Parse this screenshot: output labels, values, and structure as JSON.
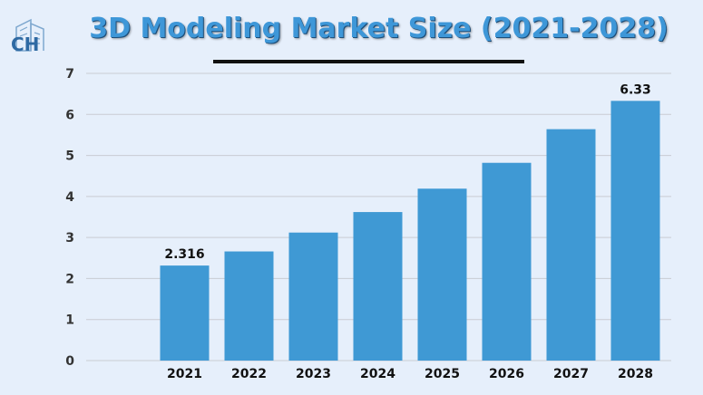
{
  "title": "3D Modeling Market Size (2021-2028)",
  "logo_text": "CH",
  "colors": {
    "bar": "#3f99d4",
    "background": "#e6effb",
    "title": "#3e97d8",
    "grid": "#c9ccd3"
  },
  "chart_data": {
    "type": "bar",
    "title": "3D Modeling Market Size (2021-2028)",
    "categories": [
      "2021",
      "2022",
      "2023",
      "2024",
      "2025",
      "2026",
      "2027",
      "2028"
    ],
    "values": [
      2.316,
      2.66,
      3.12,
      3.62,
      4.19,
      4.82,
      5.64,
      6.33
    ],
    "data_labels": {
      "2021": "2.316",
      "2028": "6.33"
    },
    "ylim": [
      0,
      7
    ],
    "yticks": [
      0,
      1,
      2,
      3,
      4,
      5,
      6,
      7
    ],
    "grid": true,
    "legend": "none",
    "xlabel": "",
    "ylabel": ""
  }
}
